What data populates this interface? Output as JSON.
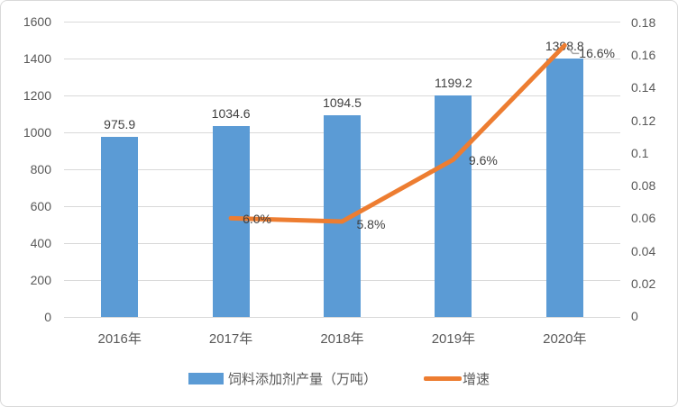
{
  "chart_data": {
    "type": "bar",
    "subtype": "bar-line-combo",
    "categories": [
      "2016年",
      "2017年",
      "2018年",
      "2019年",
      "2020年"
    ],
    "series": [
      {
        "name": "饲料添加剂产量（万吨）",
        "type": "bar",
        "axis": "left",
        "color": "#5B9BD5",
        "values": [
          975.9,
          1034.6,
          1094.5,
          1199.2,
          1398.8
        ],
        "labels": [
          "975.9",
          "1034.6",
          "1094.5",
          "1199.2",
          "1398.8"
        ]
      },
      {
        "name": "增速",
        "type": "line",
        "axis": "right",
        "color": "#ED7D31",
        "values": [
          null,
          0.06,
          0.058,
          0.096,
          0.166
        ],
        "labels": [
          null,
          "6.0%",
          "5.8%",
          "9.6%",
          "16.6%"
        ]
      }
    ],
    "left_axis": {
      "min": 0,
      "max": 1600,
      "step": 200,
      "ticks": [
        "0",
        "200",
        "400",
        "600",
        "800",
        "1000",
        "1200",
        "1400",
        "1600"
      ]
    },
    "right_axis": {
      "min": 0,
      "max": 0.18,
      "step": 0.02,
      "ticks": [
        "0",
        "0.02",
        "0.04",
        "0.06",
        "0.08",
        "0.1",
        "0.12",
        "0.14",
        "0.16",
        "0.18"
      ]
    },
    "grid": true,
    "legend_position": "bottom",
    "title": ""
  },
  "legend": {
    "bar_label": "饲料添加剂产量（万吨）",
    "line_label": "增速"
  },
  "colors": {
    "bar": "#5B9BD5",
    "line": "#ED7D31",
    "grid": "#D9D9D9",
    "axis_text": "#595959",
    "data_label": "#404040",
    "leader": "#A6A6A6",
    "border": "#D9D9D9",
    "background": "#FFFFFF"
  }
}
